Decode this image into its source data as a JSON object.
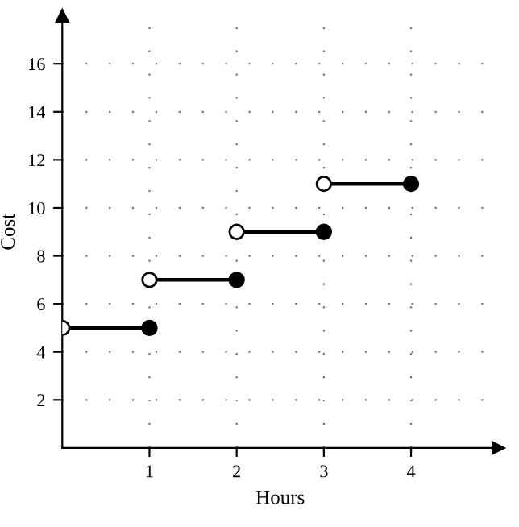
{
  "chart_data": {
    "type": "line",
    "xlabel": "Hours",
    "ylabel": "Cost",
    "xlim": [
      0,
      5
    ],
    "ylim": [
      0,
      18
    ],
    "xticks": [
      1,
      2,
      3,
      4
    ],
    "yticks": [
      2,
      4,
      6,
      8,
      10,
      12,
      14,
      16
    ],
    "grid": true,
    "series": [
      {
        "color": "#000000",
        "x": [
          0,
          1
        ],
        "values": [
          5,
          5
        ]
      },
      {
        "color": "#000000",
        "x": [
          1,
          2
        ],
        "values": [
          7,
          7
        ]
      },
      {
        "color": "#000000",
        "x": [
          2,
          3
        ],
        "values": [
          9,
          9
        ]
      },
      {
        "color": "#000000",
        "x": [
          3,
          4
        ],
        "values": [
          11,
          11
        ]
      },
      {
        "type": "scatter",
        "color": "#ffffff",
        "marker": "circle",
        "x": [
          0,
          1,
          2,
          3
        ],
        "values": [
          5,
          7,
          9,
          11
        ]
      },
      {
        "type": "scatter",
        "color": "#000000",
        "marker": "circle",
        "x": [
          1,
          2,
          3,
          4
        ],
        "values": [
          5,
          7,
          9,
          11
        ]
      }
    ]
  }
}
